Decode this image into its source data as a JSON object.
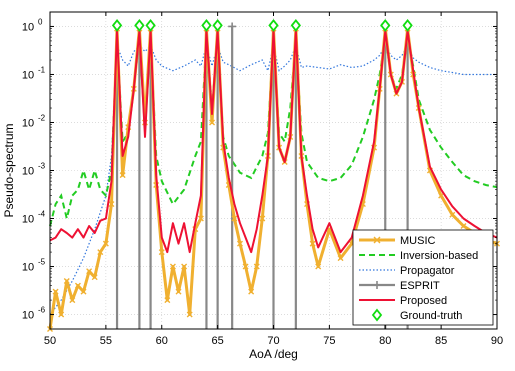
{
  "chart_data": {
    "type": "line",
    "title": "",
    "xlabel": "AoA /deg",
    "ylabel": "Pseudo-spectrum",
    "xlim": [
      50,
      90
    ],
    "ylim": [
      5e-07,
      2
    ],
    "yscale": "log",
    "x_ticks": [
      "50",
      "55",
      "60",
      "65",
      "70",
      "75",
      "80",
      "85",
      "90"
    ],
    "y_ticks": [
      {
        "base": "10",
        "exp": "0"
      },
      {
        "base": "10",
        "exp": "-1"
      },
      {
        "base": "10",
        "exp": "-2"
      },
      {
        "base": "10",
        "exp": "-3"
      },
      {
        "base": "10",
        "exp": "-4"
      },
      {
        "base": "10",
        "exp": "-5"
      },
      {
        "base": "10",
        "exp": "-6"
      }
    ],
    "grid": true,
    "legend_position": "bottom-right",
    "peaks": [
      56,
      58,
      59,
      64,
      65,
      70,
      72,
      80,
      82
    ],
    "series": [
      {
        "name": "MUSIC",
        "color": "#f0b030",
        "style": "solid-x-markers",
        "x": [
          50,
          50.5,
          51,
          51.5,
          52,
          52.5,
          53,
          53.5,
          54,
          54.5,
          55,
          55.5,
          56,
          56.5,
          57,
          57.5,
          58,
          58.5,
          59,
          59.5,
          60,
          60.5,
          61,
          61.5,
          62,
          62.5,
          63,
          63.5,
          64,
          64.5,
          65,
          65.5,
          66,
          66.5,
          67,
          67.5,
          68,
          68.5,
          69,
          69.5,
          70,
          70.5,
          71,
          71.5,
          72,
          72.5,
          73,
          73.5,
          74,
          75,
          76,
          77,
          78,
          79,
          79.5,
          80,
          80.5,
          81,
          81.5,
          82,
          82.5,
          83,
          84,
          85,
          86,
          87,
          88,
          89,
          90
        ],
        "values": [
          5e-07,
          3e-06,
          1e-06,
          5e-06,
          2e-06,
          4e-06,
          3e-06,
          8e-06,
          6e-06,
          2e-05,
          3e-05,
          0.0002,
          0.9,
          0.0008,
          0.008,
          0.05,
          0.9,
          0.01,
          0.9,
          0.0005,
          2e-05,
          2e-06,
          1e-05,
          3e-06,
          1e-05,
          1e-06,
          6e-05,
          0.0001,
          0.9,
          0.01,
          0.9,
          0.003,
          0.0005,
          0.0001,
          3e-05,
          1e-05,
          3e-06,
          1e-05,
          0.0001,
          0.002,
          0.9,
          0.003,
          0.0015,
          0.005,
          0.9,
          0.002,
          0.0002,
          3e-05,
          1e-05,
          6e-05,
          1.5e-05,
          3e-05,
          0.0002,
          0.003,
          0.05,
          0.9,
          0.1,
          0.04,
          0.07,
          0.9,
          0.1,
          0.02,
          0.001,
          0.0003,
          0.00012,
          7e-05,
          5e-05,
          3.5e-05,
          3e-05
        ]
      },
      {
        "name": "Inversion-based",
        "color": "#22cc22",
        "style": "dashed",
        "x": [
          50,
          50.5,
          51,
          51.5,
          52,
          52.5,
          53,
          53.5,
          54,
          54.5,
          55,
          55.5,
          56,
          56.5,
          57,
          57.5,
          58,
          58.5,
          59,
          59.5,
          60,
          61,
          62,
          63,
          63.5,
          64,
          64.5,
          65,
          65.5,
          66,
          67,
          68,
          69,
          69.5,
          70,
          70.5,
          71,
          71.5,
          72,
          72.5,
          73,
          74,
          75,
          76,
          77,
          78,
          79,
          79.5,
          80,
          80.5,
          81,
          81.5,
          82,
          82.5,
          83,
          84,
          85,
          86,
          87,
          88,
          89,
          90
        ],
        "values": [
          7e-05,
          0.0002,
          0.0003,
          0.0001,
          0.0003,
          0.0004,
          0.001,
          0.0004,
          0.001,
          0.0004,
          0.0003,
          0.001,
          0.6,
          0.004,
          0.006,
          0.05,
          0.6,
          0.008,
          0.6,
          0.002,
          0.0006,
          0.0002,
          0.0004,
          0.002,
          0.004,
          0.6,
          0.02,
          0.6,
          0.005,
          0.002,
          0.0009,
          0.0007,
          0.002,
          0.006,
          0.6,
          0.006,
          0.004,
          0.02,
          0.6,
          0.006,
          0.0015,
          0.0007,
          0.0006,
          0.0007,
          0.0013,
          0.005,
          0.03,
          0.1,
          0.6,
          0.1,
          0.05,
          0.1,
          0.6,
          0.15,
          0.03,
          0.007,
          0.003,
          0.0015,
          0.0008,
          0.0006,
          0.0005,
          0.00045
        ]
      },
      {
        "name": "Propagator",
        "color": "#3377dd",
        "style": "dotted",
        "x": [
          50,
          51,
          52,
          53,
          54,
          55,
          55.5,
          56,
          56.5,
          57,
          57.5,
          58,
          58.5,
          59,
          59.5,
          60,
          61,
          62,
          63,
          63.5,
          64,
          64.5,
          65,
          65.5,
          66,
          67,
          68,
          69,
          69.5,
          70,
          70.5,
          71,
          71.5,
          72,
          72.5,
          73,
          74,
          75,
          76,
          77,
          78,
          79,
          79.5,
          80,
          80.5,
          81,
          81.5,
          82,
          82.5,
          83,
          84,
          85,
          86,
          87,
          88,
          89,
          90
        ],
        "values": [
          1e-06,
          2e-06,
          5e-06,
          1.5e-05,
          6e-05,
          0.0003,
          0.002,
          0.4,
          0.2,
          0.15,
          0.3,
          0.4,
          0.3,
          0.4,
          0.2,
          0.15,
          0.12,
          0.15,
          0.2,
          0.15,
          0.4,
          0.15,
          0.4,
          0.18,
          0.16,
          0.12,
          0.16,
          0.2,
          0.12,
          0.4,
          0.12,
          0.15,
          0.2,
          0.4,
          0.14,
          0.15,
          0.14,
          0.13,
          0.16,
          0.14,
          0.15,
          0.2,
          0.25,
          0.4,
          0.25,
          0.2,
          0.25,
          0.4,
          0.22,
          0.18,
          0.14,
          0.12,
          0.11,
          0.1,
          0.1,
          0.1,
          0.1
        ]
      },
      {
        "name": "ESPRIT",
        "color": "#888888",
        "style": "stems-plus",
        "x": [
          56,
          58,
          59,
          64,
          65,
          66.3,
          70,
          72,
          80,
          82
        ],
        "values": [
          1.1,
          1.1,
          1.1,
          1.1,
          1.1,
          1.0,
          1.1,
          1.1,
          1.1,
          1.1
        ]
      },
      {
        "name": "Proposed",
        "color": "#ee1133",
        "style": "solid",
        "x": [
          50,
          50.5,
          51,
          51.5,
          52,
          52.5,
          53,
          53.5,
          54,
          54.5,
          55,
          55.5,
          56,
          56.5,
          57,
          57.5,
          58,
          58.5,
          59,
          59.5,
          60,
          60.5,
          61,
          61.5,
          62,
          62.5,
          63,
          63.5,
          64,
          64.5,
          65,
          65.5,
          66,
          66.5,
          67,
          67.5,
          68,
          68.5,
          69,
          69.5,
          70,
          70.5,
          71,
          71.5,
          72,
          72.5,
          73,
          73.5,
          74,
          75,
          76,
          77,
          78,
          79,
          79.5,
          80,
          80.5,
          81,
          81.5,
          82,
          82.5,
          83,
          84,
          85,
          86,
          87,
          88,
          89,
          90
        ],
        "values": [
          3.5e-05,
          4e-05,
          6e-05,
          5e-05,
          4e-05,
          6e-05,
          4e-05,
          7e-05,
          5e-05,
          9e-05,
          0.0001,
          0.0006,
          0.8,
          0.002,
          0.005,
          0.05,
          0.8,
          0.005,
          0.8,
          0.0008,
          4e-05,
          2e-05,
          8e-05,
          3e-05,
          8e-05,
          2e-05,
          8e-05,
          0.0003,
          0.8,
          0.015,
          0.8,
          0.004,
          0.0007,
          0.0002,
          8e-05,
          4e-05,
          2e-05,
          6e-05,
          0.0003,
          0.002,
          0.8,
          0.003,
          0.0015,
          0.005,
          0.8,
          0.002,
          0.0003,
          6e-05,
          2.5e-05,
          8e-05,
          2e-05,
          4e-05,
          0.0003,
          0.004,
          0.05,
          0.8,
          0.1,
          0.04,
          0.07,
          0.8,
          0.12,
          0.02,
          0.0012,
          0.0004,
          0.00018,
          0.0001,
          7e-05,
          5e-05,
          4e-05
        ]
      },
      {
        "name": "Ground-truth",
        "color": "#11dd11",
        "style": "diamond-markers",
        "x": [
          56,
          58,
          59,
          64,
          65,
          70,
          72,
          80,
          82
        ],
        "values": [
          1.05,
          1.05,
          1.05,
          1.05,
          1.05,
          1.05,
          1.05,
          1.05,
          1.05
        ]
      }
    ]
  }
}
